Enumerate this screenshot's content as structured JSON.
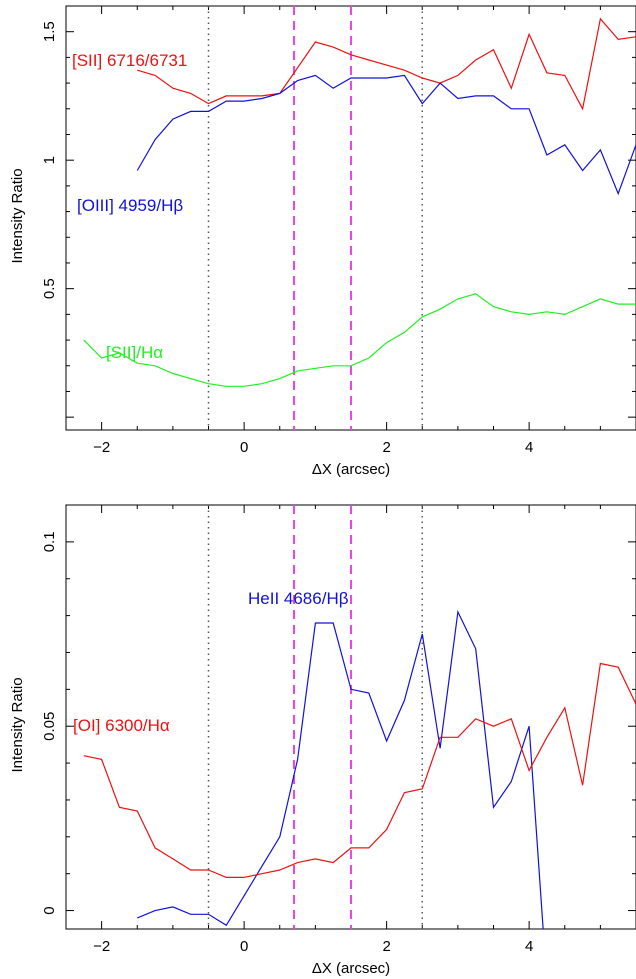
{
  "chart_data": [
    {
      "type": "line",
      "xlabel": "ΔX (arcsec)",
      "ylabel": "Intensity Ratio",
      "xlim": [
        -2.5,
        5.5
      ],
      "ylim": [
        -0.05,
        1.6
      ],
      "x_ticks": [
        "−2",
        "0",
        "2",
        "4"
      ],
      "x_tick_values": [
        -2,
        0,
        2,
        4
      ],
      "y_ticks": [
        "0.5",
        "1",
        "1.5"
      ],
      "y_tick_values": [
        0.5,
        1,
        1.5
      ],
      "grid": false,
      "vlines": [
        {
          "x": -0.5,
          "style": "dotted",
          "color": "#555555"
        },
        {
          "x": 0.7,
          "style": "dashed",
          "color": "#ee44ee"
        },
        {
          "x": 1.5,
          "style": "dashed",
          "color": "#ee44ee"
        },
        {
          "x": 2.5,
          "style": "dotted",
          "color": "#555555"
        }
      ],
      "series": [
        {
          "name": "[SII] 6716/6731",
          "color": "#ee1111",
          "x": [
            -1.5,
            -1.25,
            -1.0,
            -0.75,
            -0.5,
            -0.25,
            0.0,
            0.25,
            0.5,
            0.75,
            1.0,
            1.25,
            1.5,
            1.75,
            2.0,
            2.25,
            2.5,
            2.75,
            3.0,
            3.25,
            3.5,
            3.75,
            4.0,
            4.25,
            4.5,
            4.75,
            5.0,
            5.25,
            5.5
          ],
          "y": [
            1.35,
            1.33,
            1.28,
            1.26,
            1.22,
            1.25,
            1.25,
            1.25,
            1.26,
            1.36,
            1.46,
            1.44,
            1.41,
            1.39,
            1.37,
            1.35,
            1.32,
            1.3,
            1.33,
            1.39,
            1.43,
            1.28,
            1.49,
            1.34,
            1.33,
            1.2,
            1.55,
            1.47,
            1.48
          ]
        },
        {
          "name": "[OIII] 4959/Hβ",
          "color": "#1111dd",
          "x": [
            -1.5,
            -1.25,
            -1.0,
            -0.75,
            -0.5,
            -0.25,
            0.0,
            0.25,
            0.5,
            0.75,
            1.0,
            1.25,
            1.5,
            1.75,
            2.0,
            2.25,
            2.5,
            2.75,
            3.0,
            3.25,
            3.5,
            3.75,
            4.0,
            4.25,
            4.5,
            4.75,
            5.0,
            5.25,
            5.5
          ],
          "y": [
            0.96,
            1.08,
            1.16,
            1.19,
            1.19,
            1.23,
            1.23,
            1.24,
            1.26,
            1.31,
            1.33,
            1.28,
            1.32,
            1.32,
            1.32,
            1.33,
            1.22,
            1.3,
            1.24,
            1.25,
            1.25,
            1.2,
            1.2,
            1.02,
            1.06,
            0.96,
            1.04,
            0.87,
            1.06
          ]
        },
        {
          "name": "[SII]/Hα",
          "color": "#22ee22",
          "x": [
            -2.25,
            -2.0,
            -1.75,
            -1.5,
            -1.25,
            -1.0,
            -0.75,
            -0.5,
            -0.25,
            0.0,
            0.25,
            0.5,
            0.75,
            1.0,
            1.25,
            1.5,
            1.75,
            2.0,
            2.25,
            2.5,
            2.75,
            3.0,
            3.25,
            3.5,
            3.75,
            4.0,
            4.25,
            4.5,
            4.75,
            5.0,
            5.25,
            5.5
          ],
          "y": [
            0.3,
            0.23,
            0.25,
            0.21,
            0.2,
            0.17,
            0.15,
            0.13,
            0.12,
            0.12,
            0.13,
            0.15,
            0.18,
            0.19,
            0.2,
            0.2,
            0.23,
            0.29,
            0.33,
            0.39,
            0.42,
            0.46,
            0.48,
            0.43,
            0.41,
            0.4,
            0.41,
            0.4,
            0.43,
            0.46,
            0.44,
            0.44
          ]
        }
      ]
    },
    {
      "type": "line",
      "xlabel": "ΔX (arcsec)",
      "ylabel": "Intensity Ratio",
      "xlim": [
        -2.5,
        5.5
      ],
      "ylim": [
        -0.005,
        0.11
      ],
      "x_ticks": [
        "−2",
        "0",
        "2",
        "4"
      ],
      "x_tick_values": [
        -2,
        0,
        2,
        4
      ],
      "y_ticks": [
        "0",
        "0.05",
        "0.1"
      ],
      "y_tick_values": [
        0,
        0.05,
        0.1
      ],
      "grid": false,
      "vlines": [
        {
          "x": -0.5,
          "style": "dotted",
          "color": "#555555"
        },
        {
          "x": 0.7,
          "style": "dashed",
          "color": "#ee44ee"
        },
        {
          "x": 1.5,
          "style": "dashed",
          "color": "#ee44ee"
        },
        {
          "x": 2.5,
          "style": "dotted",
          "color": "#555555"
        }
      ],
      "series": [
        {
          "name": "HeII 4686/Hβ",
          "color": "#1111dd",
          "x": [
            -1.5,
            -1.25,
            -1.0,
            -0.75,
            -0.5,
            -0.25,
            0.0,
            0.25,
            0.5,
            0.75,
            1.0,
            1.25,
            1.5,
            1.75,
            2.0,
            2.25,
            2.5,
            2.75,
            3.0,
            3.25,
            3.5,
            3.75,
            4.0,
            4.2
          ],
          "y": [
            -0.002,
            0.0,
            0.001,
            -0.001,
            -0.001,
            -0.004,
            0.004,
            0.012,
            0.02,
            0.041,
            0.078,
            0.078,
            0.06,
            0.059,
            0.046,
            0.057,
            0.075,
            0.044,
            0.081,
            0.071,
            0.028,
            0.035,
            0.05,
            -0.006
          ]
        },
        {
          "name": "[OI] 6300/Hα",
          "color": "#ee1111",
          "x": [
            -2.25,
            -2.0,
            -1.75,
            -1.5,
            -1.25,
            -1.0,
            -0.75,
            -0.5,
            -0.25,
            0.0,
            0.25,
            0.5,
            0.75,
            1.0,
            1.25,
            1.5,
            1.75,
            2.0,
            2.25,
            2.5,
            2.75,
            3.0,
            3.25,
            3.5,
            3.75,
            4.0,
            4.25,
            4.5,
            4.75,
            5.0,
            5.25,
            5.5
          ],
          "y": [
            0.042,
            0.041,
            0.028,
            0.027,
            0.017,
            0.014,
            0.011,
            0.011,
            0.009,
            0.009,
            0.01,
            0.011,
            0.013,
            0.014,
            0.013,
            0.017,
            0.017,
            0.022,
            0.032,
            0.033,
            0.047,
            0.047,
            0.052,
            0.05,
            0.052,
            0.038,
            0.047,
            0.055,
            0.034,
            0.067,
            0.066,
            0.056
          ]
        }
      ]
    }
  ]
}
